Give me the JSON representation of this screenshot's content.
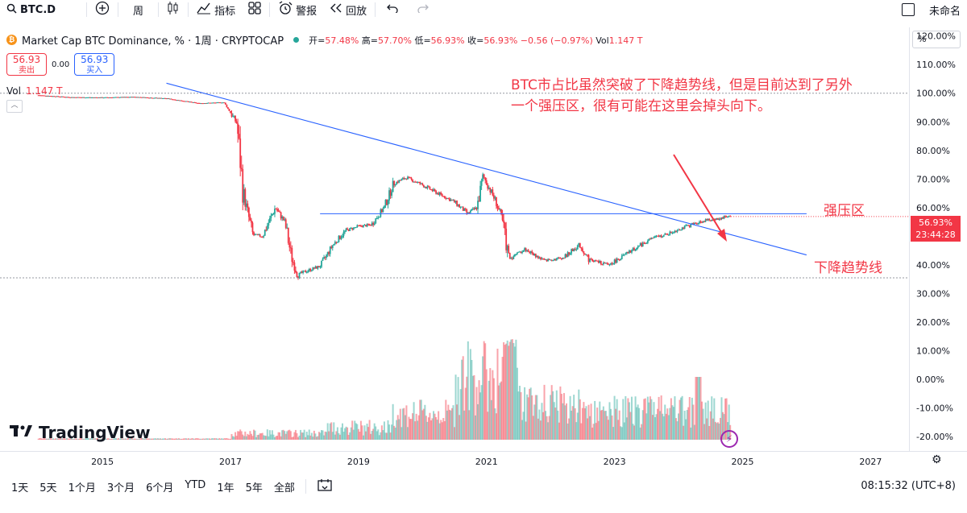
{
  "toolbar": {
    "symbol": "BTC.D",
    "interval": "周",
    "indicators": "指标",
    "alert": "警报",
    "replay": "回放",
    "layout_name": "未命名"
  },
  "legend": {
    "title": "Market Cap BTC Dominance, % · 1周 · CRYPTOCAP",
    "open_label": "开=",
    "open": "57.48%",
    "high_label": "高=",
    "high": "57.70%",
    "low_label": "低=",
    "low": "56.93%",
    "close_label": "收=",
    "close": "56.93%",
    "change": "−0.56 (−0.97%)",
    "vol_label": "Vol",
    "vol": "1.147 T"
  },
  "trade": {
    "sell_price": "56.93",
    "sell_label": "卖出",
    "spread": "0.00",
    "buy_price": "56.93",
    "buy_label": "买入"
  },
  "volume_pane": {
    "label": "Vol",
    "value": "1.147 T"
  },
  "axis": {
    "unit_box": "%"
  },
  "price_tag": {
    "value": "56.93%",
    "countdown": "23:44:28"
  },
  "annotations": {
    "main_text": "BTC市占比虽然突破了下降趋势线，但是目前达到了另外一个强压区，很有可能在这里会掉头向下。",
    "zone_label": "强压区",
    "trend_label": "下降趋势线"
  },
  "branding": {
    "logo_text": "TradingView"
  },
  "bottom": {
    "ranges": [
      "1天",
      "5天",
      "1个月",
      "3个月",
      "6个月",
      "YTD",
      "1年",
      "5年",
      "全部"
    ],
    "clock": "08:15:32 (UTC+8)"
  },
  "colors": {
    "up": "#26a69a",
    "down": "#f23645",
    "annotation": "#f23645",
    "trendline": "#2962ff"
  },
  "chart_data": {
    "type": "candlestick",
    "title": "Market Cap BTC Dominance, % · 1周 · CRYPTOCAP",
    "y_unit": "%",
    "y_ticks": [
      "120.00%",
      "110.00%",
      "100.00%",
      "90.00%",
      "80.00%",
      "70.00%",
      "60.00%",
      "50.00%",
      "40.00%",
      "30.00%",
      "20.00%",
      "10.00%",
      "0.00%",
      "-10.00%",
      "-20.00%"
    ],
    "ylim": [
      -25,
      123
    ],
    "x_ticks": [
      "2015",
      "2017",
      "2019",
      "2021",
      "2023",
      "2025",
      "2027"
    ],
    "xlim": [
      2013.4,
      2027.6
    ],
    "price_path": [
      [
        2014.0,
        99.3
      ],
      [
        2014.5,
        98.6
      ],
      [
        2015.0,
        98.5
      ],
      [
        2015.5,
        98.7
      ],
      [
        2016.0,
        98.2
      ],
      [
        2016.5,
        96.5
      ],
      [
        2016.9,
        96.8
      ],
      [
        2017.1,
        89.5
      ],
      [
        2017.2,
        65.0
      ],
      [
        2017.35,
        50.5
      ],
      [
        2017.5,
        50.0
      ],
      [
        2017.7,
        60.0
      ],
      [
        2017.85,
        55.0
      ],
      [
        2017.95,
        43.0
      ],
      [
        2018.05,
        36.5
      ],
      [
        2018.2,
        38.0
      ],
      [
        2018.4,
        39.5
      ],
      [
        2018.6,
        47.0
      ],
      [
        2018.8,
        52.0
      ],
      [
        2019.0,
        53.5
      ],
      [
        2019.2,
        54.0
      ],
      [
        2019.4,
        60.0
      ],
      [
        2019.55,
        68.5
      ],
      [
        2019.75,
        70.5
      ],
      [
        2019.95,
        68.5
      ],
      [
        2020.2,
        65.5
      ],
      [
        2020.5,
        62.0
      ],
      [
        2020.7,
        58.0
      ],
      [
        2020.85,
        60.0
      ],
      [
        2020.95,
        71.0
      ],
      [
        2021.15,
        62.0
      ],
      [
        2021.25,
        55.0
      ],
      [
        2021.35,
        42.0
      ],
      [
        2021.6,
        45.5
      ],
      [
        2021.9,
        41.5
      ],
      [
        2022.2,
        42.5
      ],
      [
        2022.45,
        47.0
      ],
      [
        2022.6,
        42.0
      ],
      [
        2022.9,
        40.0
      ],
      [
        2023.1,
        42.5
      ],
      [
        2023.3,
        45.5
      ],
      [
        2023.6,
        49.5
      ],
      [
        2023.8,
        50.5
      ],
      [
        2024.0,
        52.5
      ],
      [
        2024.2,
        54.0
      ],
      [
        2024.4,
        55.5
      ],
      [
        2024.6,
        56.0
      ],
      [
        2024.75,
        57.0
      ],
      [
        2024.82,
        56.93
      ]
    ],
    "last": {
      "open": 57.48,
      "high": 57.7,
      "low": 56.93,
      "close": 56.93,
      "change": -0.56,
      "change_pct": -0.97
    },
    "drawings": {
      "resistance_level": 57.9,
      "support_level": 35.5,
      "ath_level": 100.0,
      "downtrend_line": [
        [
          2016.0,
          103.5
        ],
        [
          2026.0,
          43.5
        ]
      ]
    },
    "volume": {
      "label": "Vol",
      "last": "1.147 T"
    }
  }
}
